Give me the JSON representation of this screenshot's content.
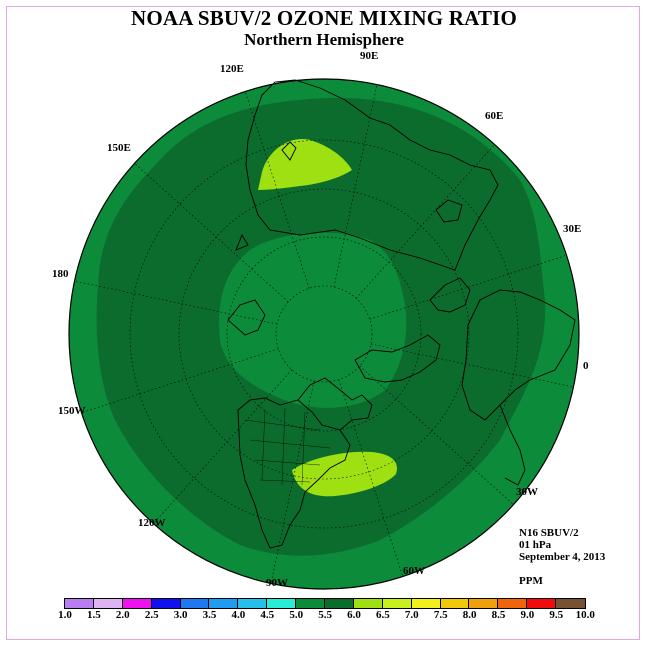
{
  "header": {
    "title": "NOAA SBUV/2 OZONE MIXING RATIO",
    "subtitle": "Northern Hemisphere"
  },
  "longitude_labels": [
    "90E",
    "60E",
    "30E",
    "0",
    "30W",
    "60W",
    "90W",
    "120W",
    "150W",
    "180",
    "150E",
    "120E"
  ],
  "info": {
    "instrument": "N16 SBUV/2",
    "level": "01 hPa",
    "date": "September 4, 2013",
    "units": "PPM"
  },
  "colorbar": {
    "colors": [
      "#b67ef0",
      "#dcb4f2",
      "#ee12ee",
      "#1010f0",
      "#1e78f0",
      "#1e9cf0",
      "#28beea",
      "#28ecd6",
      "#0c8c3a",
      "#0c6c2e",
      "#9ee012",
      "#c8f01e",
      "#f0f01e",
      "#f0c80c",
      "#f0a00c",
      "#f0640c",
      "#f00c0c",
      "#785032"
    ],
    "tick_labels": [
      "1.0",
      "1.5",
      "2.0",
      "2.5",
      "3.0",
      "3.5",
      "4.0",
      "4.5",
      "5.0",
      "5.5",
      "6.0",
      "6.5",
      "7.0",
      "7.5",
      "8.0",
      "8.5",
      "9.0",
      "9.5",
      "10.0"
    ]
  },
  "map": {
    "fill_colors": {
      "outer_5_5": "#0c8c3a",
      "mid_5_5_6_0": "#0c6c2e",
      "center_5_5": "#0c8c3a",
      "max_6_0_6_5": "#9ee012"
    }
  }
}
